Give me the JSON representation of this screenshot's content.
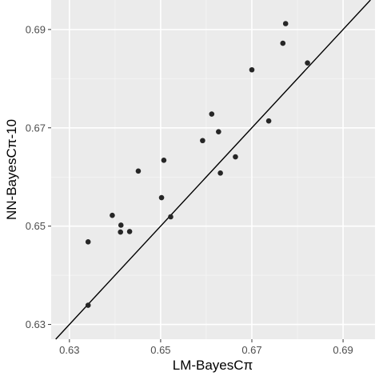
{
  "chart_data": {
    "type": "scatter",
    "title": "",
    "xlabel": "LM-BayesCπ",
    "ylabel": "NN-BayesCπ-10",
    "xlim": [
      0.626,
      0.697
    ],
    "ylim": [
      0.627,
      0.696
    ],
    "x_ticks": [
      0.63,
      0.65,
      0.67,
      0.69
    ],
    "x_tick_labels": [
      "0.63",
      "0.65",
      "0.67",
      "0.69"
    ],
    "y_ticks": [
      0.63,
      0.65,
      0.67,
      0.69
    ],
    "y_tick_labels": [
      "0.63",
      "0.65",
      "0.67",
      "0.69"
    ],
    "grid": true,
    "reference_line": "y = x",
    "points": [
      {
        "x": 0.6341,
        "y": 0.6339
      },
      {
        "x": 0.6341,
        "y": 0.6468
      },
      {
        "x": 0.6394,
        "y": 0.6522
      },
      {
        "x": 0.6413,
        "y": 0.6502
      },
      {
        "x": 0.6412,
        "y": 0.6488
      },
      {
        "x": 0.6432,
        "y": 0.6489
      },
      {
        "x": 0.6451,
        "y": 0.6612
      },
      {
        "x": 0.6502,
        "y": 0.6558
      },
      {
        "x": 0.6507,
        "y": 0.6634
      },
      {
        "x": 0.6522,
        "y": 0.6519
      },
      {
        "x": 0.6592,
        "y": 0.6674
      },
      {
        "x": 0.6612,
        "y": 0.6728
      },
      {
        "x": 0.6627,
        "y": 0.6692
      },
      {
        "x": 0.6631,
        "y": 0.6608
      },
      {
        "x": 0.6664,
        "y": 0.6641
      },
      {
        "x": 0.67,
        "y": 0.6818
      },
      {
        "x": 0.6737,
        "y": 0.6714
      },
      {
        "x": 0.6768,
        "y": 0.6872
      },
      {
        "x": 0.6774,
        "y": 0.6912
      },
      {
        "x": 0.6822,
        "y": 0.6832
      }
    ],
    "colors": {
      "panel_bg": "#ebebeb",
      "grid_major": "#ffffff",
      "grid_minor": "#f5f5f5",
      "point": "#262626",
      "line": "#000000"
    }
  }
}
